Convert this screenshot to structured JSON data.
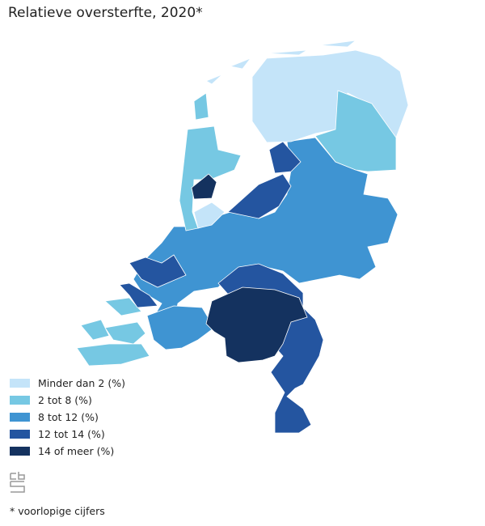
{
  "title": "Relatieve oversterfte, 2020*",
  "legend": [
    {
      "label": "Minder dan 2 (%)",
      "color": "#c4e4f9"
    },
    {
      "label": "2 tot 8 (%)",
      "color": "#76c8e3"
    },
    {
      "label": "8 tot 12 (%)",
      "color": "#3f94d2"
    },
    {
      "label": "12 tot 14 (%)",
      "color": "#2455a0"
    },
    {
      "label": "14 of meer (%)",
      "color": "#14325f"
    }
  ],
  "logo": "cbs",
  "footnote": "* voorlopige cijfers"
}
